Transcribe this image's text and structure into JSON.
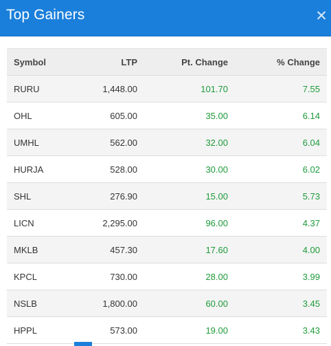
{
  "modal": {
    "title": "Top Gainers",
    "close_icon": "close-icon",
    "close_glyph": "✕"
  },
  "table": {
    "headers": [
      "Symbol",
      "LTP",
      "Pt. Change",
      "% Change"
    ],
    "rows": [
      {
        "symbol": "RURU",
        "ltp": "1,448.00",
        "pt_change": "101.70",
        "pct_change": "7.55"
      },
      {
        "symbol": "OHL",
        "ltp": "605.00",
        "pt_change": "35.00",
        "pct_change": "6.14"
      },
      {
        "symbol": "UMHL",
        "ltp": "562.00",
        "pt_change": "32.00",
        "pct_change": "6.04"
      },
      {
        "symbol": "HURJA",
        "ltp": "528.00",
        "pt_change": "30.00",
        "pct_change": "6.02"
      },
      {
        "symbol": "SHL",
        "ltp": "276.90",
        "pt_change": "15.00",
        "pct_change": "5.73"
      },
      {
        "symbol": "LICN",
        "ltp": "2,295.00",
        "pt_change": "96.00",
        "pct_change": "4.37"
      },
      {
        "symbol": "MKLB",
        "ltp": "457.30",
        "pt_change": "17.60",
        "pct_change": "4.00"
      },
      {
        "symbol": "KPCL",
        "ltp": "730.00",
        "pt_change": "28.00",
        "pct_change": "3.99"
      },
      {
        "symbol": "NSLB",
        "ltp": "1,800.00",
        "pt_change": "60.00",
        "pct_change": "3.45"
      },
      {
        "symbol": "HPPL",
        "ltp": "573.00",
        "pt_change": "19.00",
        "pct_change": "3.43"
      }
    ]
  },
  "colors": {
    "header_bg": "#1a7fdb",
    "positive": "#1e9a3a",
    "row_stripe": "#f4f4f4"
  }
}
